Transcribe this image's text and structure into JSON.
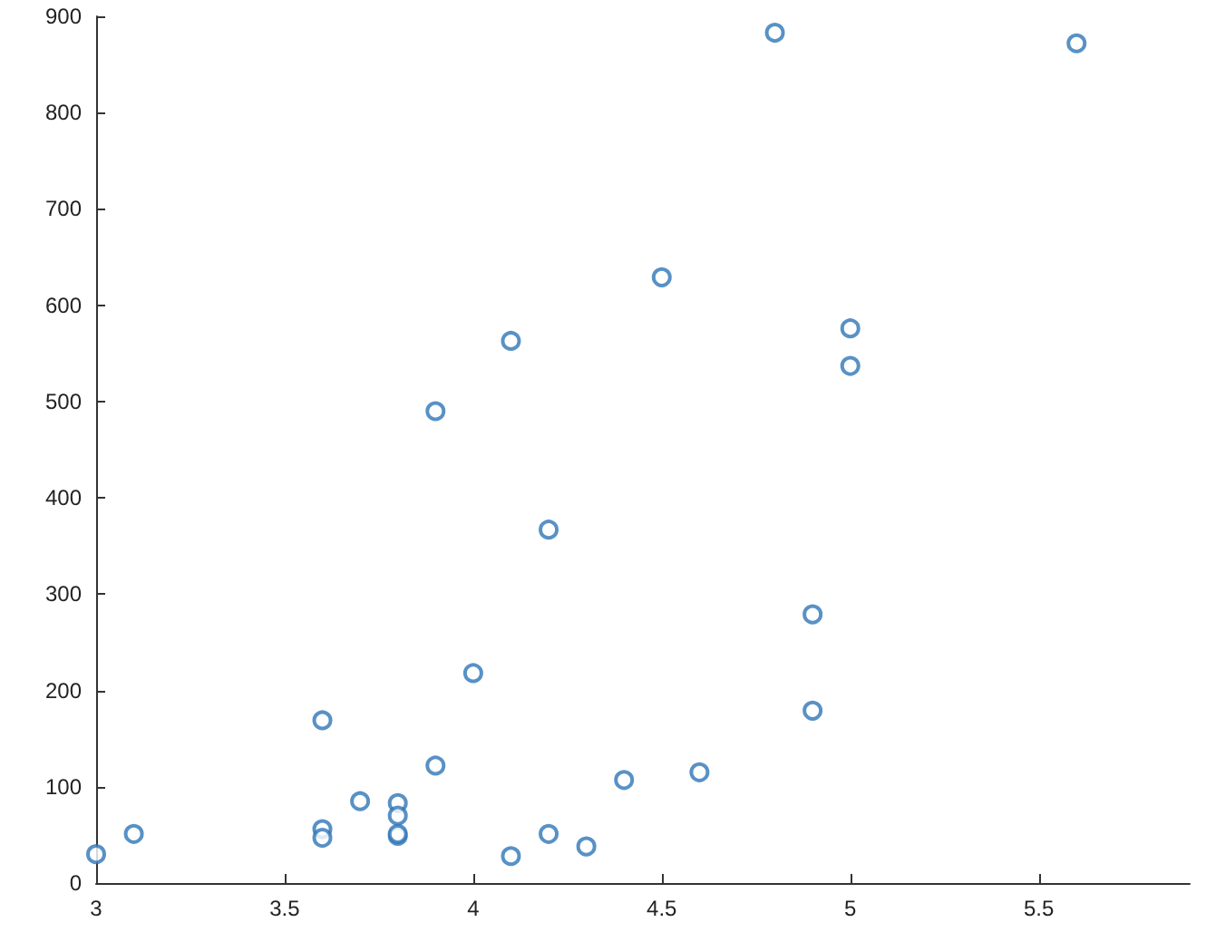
{
  "chart_data": {
    "type": "scatter",
    "marker": "circle",
    "grid": false,
    "x": [
      3.0,
      3.1,
      3.6,
      3.6,
      3.6,
      3.7,
      3.8,
      3.8,
      3.8,
      3.8,
      3.9,
      3.9,
      4.0,
      4.1,
      4.1,
      4.2,
      4.2,
      4.3,
      4.4,
      4.5,
      4.6,
      4.8,
      4.9,
      4.9,
      5.0,
      5.0,
      5.6
    ],
    "values": [
      30,
      51,
      169,
      56,
      47,
      85,
      83,
      70,
      49,
      51,
      490,
      122,
      218,
      563,
      28,
      367,
      51,
      38,
      107,
      629,
      115,
      883,
      279,
      179,
      576,
      537,
      872
    ],
    "color": "#2e75b6",
    "xlim": [
      3,
      5.9
    ],
    "xticks": [
      3,
      3.5,
      4,
      4.5,
      5,
      5.5
    ],
    "ylim": [
      0,
      900
    ],
    "yticks": [
      0,
      100,
      200,
      300,
      400,
      500,
      600,
      700,
      800,
      900
    ]
  }
}
